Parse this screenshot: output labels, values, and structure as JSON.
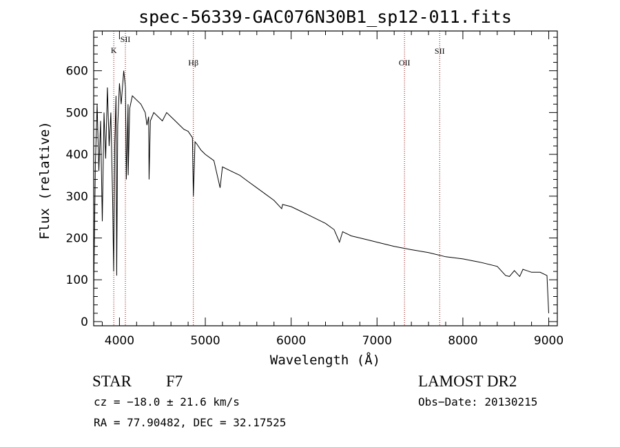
{
  "chart_data": {
    "type": "line",
    "title": "spec-56339-GAC076N30B1_sp12-011.fits",
    "xlabel": "Wavelength (Å)",
    "ylabel": "Flux (relative)",
    "xlim": [
      3700,
      9100
    ],
    "ylim": [
      -10,
      695
    ],
    "xticks": [
      4000,
      5000,
      6000,
      7000,
      8000,
      9000
    ],
    "yticks": [
      0,
      100,
      200,
      300,
      400,
      500,
      600
    ],
    "grid": false,
    "line_color": "#000000",
    "marker_color": "#8b0000",
    "spectral_lines": [
      {
        "name": "K",
        "wavelength": 3934
      },
      {
        "name": "SII",
        "wavelength": 4069
      },
      {
        "name": "Hβ",
        "wavelength": 4861
      },
      {
        "name": "OII",
        "wavelength": 7320
      },
      {
        "name": "SII",
        "wavelength": 7730
      }
    ],
    "series": [
      {
        "x": [
          3700,
          3720,
          3740,
          3760,
          3780,
          3800,
          3820,
          3840,
          3860,
          3880,
          3900,
          3920,
          3933,
          3945,
          3960,
          3968,
          3980,
          4000,
          4020,
          4050,
          4070,
          4080,
          4100,
          4102,
          4120,
          4150,
          4200,
          4250,
          4300,
          4320,
          4340,
          4345,
          4360,
          4400,
          4450,
          4500,
          4550,
          4600,
          4650,
          4700,
          4750,
          4800,
          4850,
          4861,
          4880,
          4900,
          4950,
          5000,
          5100,
          5172,
          5200,
          5300,
          5400,
          5500,
          5600,
          5700,
          5800,
          5890,
          5900,
          6000,
          6100,
          6200,
          6300,
          6400,
          6500,
          6563,
          6600,
          6700,
          6800,
          6900,
          7000,
          7200,
          7400,
          7600,
          7800,
          8000,
          8200,
          8400,
          8498,
          8542,
          8600,
          8662,
          8700,
          8800,
          8900,
          8980,
          9000
        ],
        "y": [
          70,
          380,
          520,
          360,
          480,
          240,
          500,
          390,
          560,
          420,
          500,
          300,
          120,
          420,
          540,
          110,
          470,
          570,
          520,
          600,
          560,
          340,
          520,
          350,
          510,
          540,
          530,
          520,
          500,
          470,
          490,
          340,
          480,
          500,
          490,
          480,
          500,
          490,
          480,
          470,
          460,
          455,
          440,
          300,
          430,
          425,
          410,
          400,
          385,
          320,
          370,
          360,
          350,
          335,
          320,
          305,
          290,
          270,
          280,
          275,
          265,
          255,
          245,
          235,
          220,
          190,
          215,
          205,
          200,
          195,
          190,
          180,
          172,
          165,
          155,
          150,
          142,
          132,
          110,
          108,
          122,
          108,
          125,
          118,
          118,
          110,
          20
        ]
      }
    ]
  },
  "info": {
    "object_class": "STAR",
    "subclass": "F7",
    "survey": "LAMOST DR2",
    "redshift": "cz = −18.0 ± 21.6 km/s",
    "obs_date": "Obs−Date: 20130215",
    "coords": "RA =  77.90482, DEC =  32.17525"
  }
}
